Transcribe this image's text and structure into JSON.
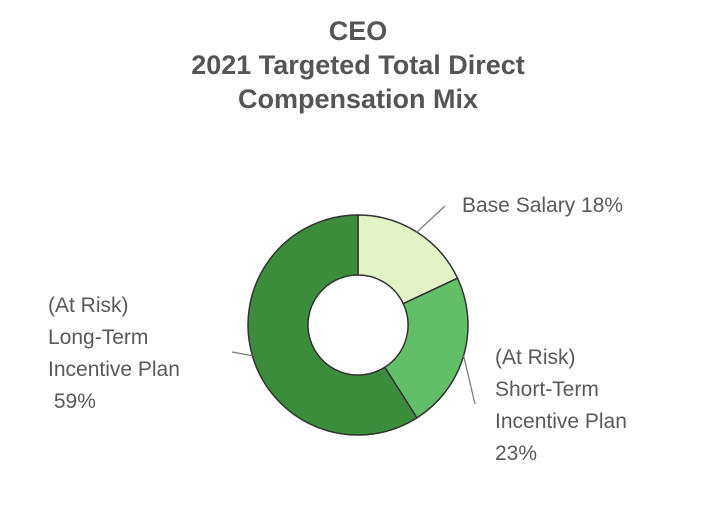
{
  "chart_data": {
    "type": "pie",
    "variant": "donut",
    "title_lines": [
      "CEO",
      "2021 Targeted Total Direct",
      "Compensation Mix"
    ],
    "slices": [
      {
        "label_lines": [
          "Base Salary 18%"
        ],
        "value": 18,
        "color": "#e2f3c6"
      },
      {
        "label_lines": [
          "(At Risk)",
          "Short-Term",
          "Incentive Plan",
          "23%"
        ],
        "value": 23,
        "color": "#63bf67"
      },
      {
        "label_lines": [
          "(At Risk)",
          "Long-Term",
          "Incentive Plan",
          " 59%"
        ],
        "value": 59,
        "color": "#3b8c3b"
      }
    ],
    "slice_border_color": "#333333",
    "leader_line_color": "#7f7f7f"
  }
}
